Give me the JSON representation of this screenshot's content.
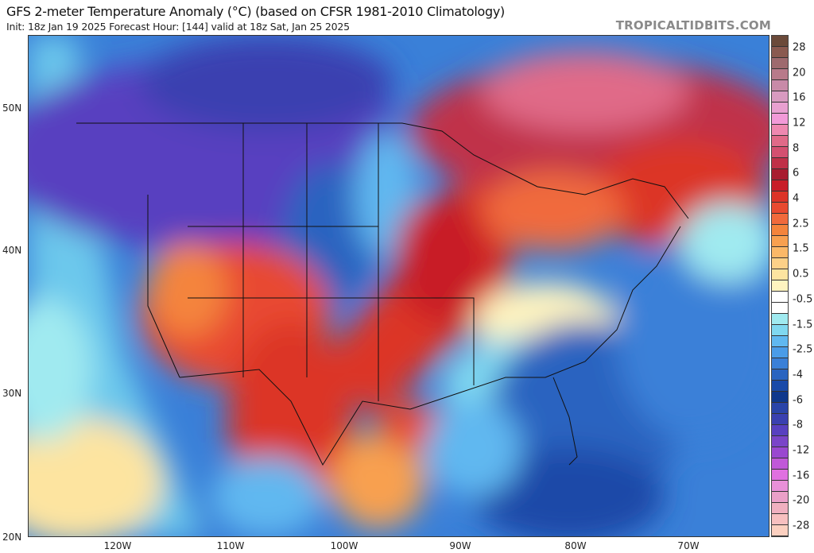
{
  "header": {
    "title": "GFS 2-meter Temperature Anomaly (°C) (based on CFSR 1981-2010 Climatology)",
    "subtitle": "Init: 18z Jan 19 2025   Forecast Hour: [144]   valid at 18z Sat, Jan 25 2025",
    "brand": "TROPICALTIDBITS.COM"
  },
  "axes": {
    "latitudes": [
      "50N",
      "40N",
      "30N",
      "20N"
    ],
    "longitudes": [
      "120W",
      "110W",
      "100W",
      "90W",
      "80W",
      "70W"
    ]
  },
  "colorbar": {
    "labels": [
      "28",
      "20",
      "16",
      "12",
      "8",
      "6",
      "4",
      "2.5",
      "1.5",
      "0.5",
      "-0.5",
      "-1.5",
      "-2.5",
      "-4",
      "-6",
      "-8",
      "-12",
      "-16",
      "-20",
      "-28"
    ],
    "colors": [
      "#6b4a3a",
      "#8a5a50",
      "#9e6a6e",
      "#b87a8a",
      "#c88aa8",
      "#d89ac0",
      "#e8a0d0",
      "#f29ad8",
      "#ee88b0",
      "#e06a88",
      "#d45070",
      "#c03048",
      "#a81c30",
      "#c81e28",
      "#dc3428",
      "#e84a30",
      "#f06a3c",
      "#f4843c",
      "#f8a050",
      "#fbb868",
      "#fcd088",
      "#fde4a0",
      "#fff4c0",
      "#ffffff",
      "#ffffff",
      "#a0eaf0",
      "#80d8f0",
      "#60b8f0",
      "#4a9ce8",
      "#3a80d8",
      "#2a64c0",
      "#1a4aa8",
      "#10388c",
      "#2a44a8",
      "#3a40b0",
      "#5840c0",
      "#7a44c8",
      "#9a48d0",
      "#c058d8",
      "#e070e0",
      "#e890d8",
      "#eaa0c8",
      "#f0b0c0",
      "#f8c0c0",
      "#fcd0c0"
    ]
  }
}
